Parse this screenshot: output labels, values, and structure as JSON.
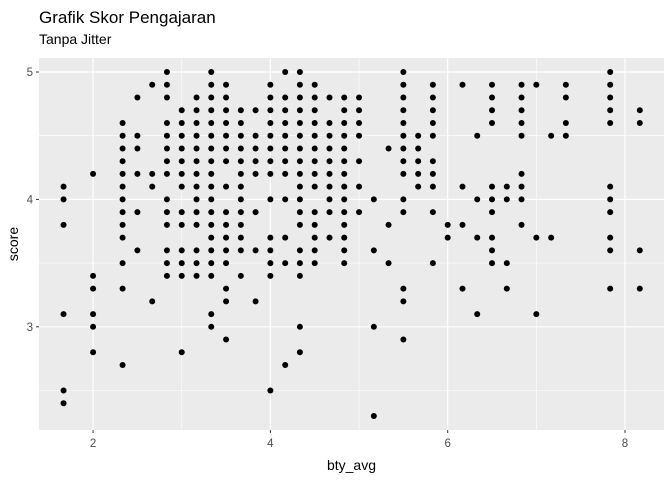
{
  "chart_data": {
    "type": "scatter",
    "title": "Grafik Skor Pengajaran",
    "subtitle": "Tanpa Jitter",
    "xlabel": "bty_avg",
    "ylabel": "score",
    "xlim": [
      1.39,
      8.44
    ],
    "ylim": [
      2.19,
      5.11
    ],
    "x_ticks": [
      2,
      4,
      6,
      8
    ],
    "y_ticks": [
      3,
      4,
      5
    ],
    "grid": true,
    "legend": "none",
    "colors": {
      "panel": "#ebebeb",
      "grid": "#ffffff",
      "point": "#000000"
    },
    "x_columns": [
      1.667,
      2.0,
      2.333,
      2.5,
      2.667,
      2.833,
      3.0,
      3.167,
      3.333,
      3.5,
      3.667,
      3.833,
      4.0,
      4.167,
      4.333,
      4.5,
      4.667,
      4.833,
      5.0,
      5.167,
      5.333,
      5.5,
      5.667,
      5.833,
      6.0,
      6.167,
      6.333,
      6.5,
      6.667,
      6.833,
      7.0,
      7.167,
      7.333,
      7.833,
      8.167
    ],
    "y_per_column": [
      [
        2.4,
        2.5,
        3.1,
        3.8,
        4.0,
        4.1
      ],
      [
        2.8,
        3.0,
        3.1,
        3.3,
        3.4,
        4.2
      ],
      [
        2.7,
        3.3,
        3.5,
        3.7,
        3.8,
        3.9,
        4.0,
        4.1,
        4.2,
        4.3,
        4.4,
        4.5,
        4.6
      ],
      [
        3.6,
        3.9,
        4.2,
        4.4,
        4.5,
        4.8
      ],
      [
        3.2,
        4.1,
        4.2,
        4.9
      ],
      [
        3.4,
        3.5,
        3.6,
        3.8,
        3.9,
        4.0,
        4.2,
        4.3,
        4.4,
        4.5,
        4.6,
        4.8,
        4.9,
        5.0
      ],
      [
        2.8,
        3.4,
        3.5,
        3.6,
        3.8,
        3.9,
        4.1,
        4.2,
        4.3,
        4.4,
        4.5,
        4.6,
        4.7
      ],
      [
        3.4,
        3.5,
        3.6,
        3.8,
        3.9,
        4.0,
        4.1,
        4.2,
        4.3,
        4.4,
        4.5,
        4.6,
        4.7,
        4.8
      ],
      [
        3.0,
        3.1,
        3.4,
        3.5,
        3.6,
        3.7,
        3.8,
        3.9,
        4.0,
        4.1,
        4.2,
        4.3,
        4.4,
        4.5,
        4.6,
        4.7,
        4.8,
        4.9,
        5.0
      ],
      [
        2.9,
        3.2,
        3.3,
        3.5,
        3.6,
        3.7,
        3.8,
        3.9,
        4.1,
        4.3,
        4.4,
        4.5,
        4.6,
        4.7,
        4.8,
        4.9
      ],
      [
        3.4,
        3.6,
        3.7,
        3.8,
        3.9,
        4.0,
        4.1,
        4.2,
        4.3,
        4.4,
        4.5,
        4.6,
        4.7
      ],
      [
        3.2,
        3.6,
        3.9,
        4.2,
        4.3,
        4.4,
        4.5,
        4.7
      ],
      [
        2.5,
        3.4,
        3.5,
        3.6,
        3.7,
        4.0,
        4.2,
        4.3,
        4.4,
        4.5,
        4.6,
        4.7,
        4.8,
        4.9
      ],
      [
        2.7,
        3.5,
        3.7,
        4.0,
        4.2,
        4.3,
        4.4,
        4.5,
        4.6,
        4.7,
        4.8,
        5.0
      ],
      [
        2.8,
        3.0,
        3.4,
        3.5,
        3.6,
        3.8,
        3.9,
        4.0,
        4.1,
        4.2,
        4.3,
        4.4,
        4.5,
        4.6,
        4.7,
        4.8,
        4.9,
        5.0
      ],
      [
        3.5,
        3.6,
        3.7,
        3.8,
        3.9,
        4.1,
        4.2,
        4.3,
        4.4,
        4.5,
        4.6,
        4.7,
        4.8,
        4.9
      ],
      [
        3.7,
        3.9,
        4.0,
        4.1,
        4.2,
        4.3,
        4.4,
        4.5,
        4.6,
        4.8
      ],
      [
        3.5,
        3.6,
        3.7,
        3.8,
        3.9,
        4.0,
        4.1,
        4.2,
        4.3,
        4.4,
        4.5,
        4.6,
        4.7,
        4.8
      ],
      [
        3.9,
        4.1,
        4.3,
        4.5,
        4.6,
        4.7,
        4.8
      ],
      [
        2.3,
        3.0,
        3.6,
        4.0
      ],
      [
        3.5,
        3.8,
        4.4
      ],
      [
        2.9,
        3.2,
        3.3,
        3.9,
        4.0,
        4.2,
        4.3,
        4.4,
        4.5,
        4.6,
        4.7,
        4.8,
        4.9,
        5.0
      ],
      [
        4.1,
        4.2,
        4.3,
        4.4,
        4.5
      ],
      [
        3.5,
        3.9,
        4.1,
        4.2,
        4.3,
        4.5,
        4.6,
        4.7,
        4.8,
        4.9
      ],
      [
        3.7,
        3.8
      ],
      [
        3.3,
        3.8,
        4.1,
        4.9
      ],
      [
        3.1,
        3.7,
        4.0,
        4.5
      ],
      [
        3.5,
        3.6,
        3.7,
        3.9,
        4.0,
        4.1,
        4.6,
        4.7,
        4.8,
        4.9
      ],
      [
        3.3,
        3.5,
        4.0,
        4.1
      ],
      [
        3.8,
        4.0,
        4.1,
        4.2,
        4.5,
        4.6,
        4.7,
        4.8,
        4.9
      ],
      [
        3.1,
        3.7,
        4.9
      ],
      [
        3.7,
        4.5
      ],
      [
        4.5,
        4.6,
        4.8,
        4.9
      ],
      [
        3.3,
        3.6,
        3.7,
        3.9,
        4.0,
        4.1,
        4.6,
        4.7,
        4.8,
        4.9,
        5.0
      ],
      [
        3.3,
        3.6,
        4.6,
        4.7
      ]
    ]
  }
}
